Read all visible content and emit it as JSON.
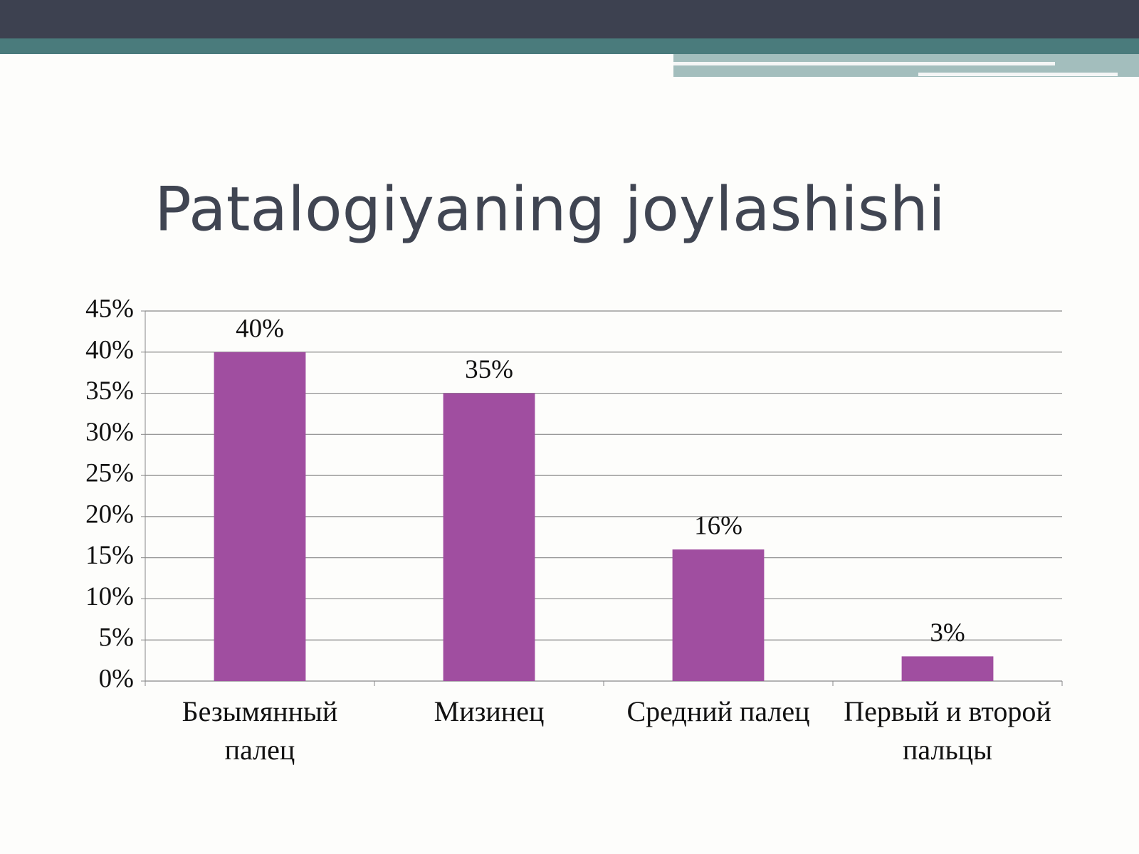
{
  "chart_data": {
    "type": "bar",
    "title": "Patalogiyaning joylashishi",
    "categories": [
      "Безымянный палец",
      "Мизинец",
      "Средний палец",
      "Первый и второй пальцы"
    ],
    "values": [
      40,
      35,
      16,
      3
    ],
    "value_labels": [
      "40%",
      "35%",
      "16%",
      "3%"
    ],
    "color": "#a04ea0",
    "ylim": [
      0,
      45
    ],
    "yticks": [
      {
        "value": 0,
        "label": "0%"
      },
      {
        "value": 5,
        "label": "5%"
      },
      {
        "value": 10,
        "label": "10%"
      },
      {
        "value": 15,
        "label": "15%"
      },
      {
        "value": 20,
        "label": "20%"
      },
      {
        "value": 25,
        "label": "25%"
      },
      {
        "value": 30,
        "label": "30%"
      },
      {
        "value": 35,
        "label": "35%"
      },
      {
        "value": 40,
        "label": "40%"
      },
      {
        "value": 45,
        "label": "45%"
      }
    ],
    "grid": true
  }
}
